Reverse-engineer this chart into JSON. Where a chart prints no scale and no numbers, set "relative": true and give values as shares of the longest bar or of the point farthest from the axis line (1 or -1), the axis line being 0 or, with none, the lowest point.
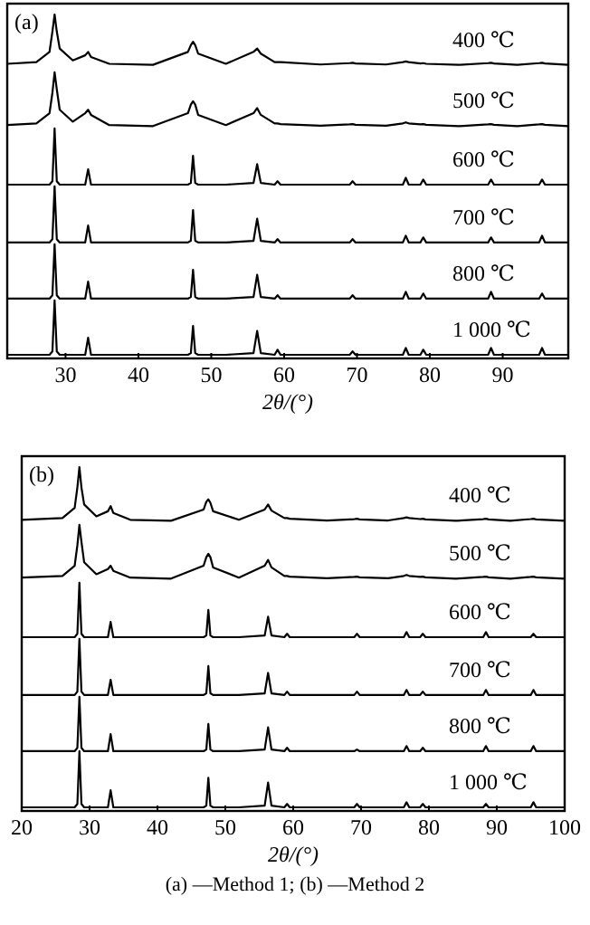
{
  "chart_data": [
    {
      "type": "line",
      "relative": true,
      "xlabel": "2θ/(°)",
      "annotations": [
        "(a)"
      ],
      "grid": false,
      "marker": "none",
      "line_style": "solid",
      "xlim": [
        22,
        99
      ],
      "xticks": [
        30,
        40,
        50,
        60,
        70,
        80,
        90
      ],
      "x": [
        22,
        26,
        27.8,
        28.2,
        28.5,
        28.8,
        29.2,
        31,
        32.7,
        33.1,
        33.5,
        36,
        42,
        46.8,
        47.2,
        47.5,
        47.8,
        48.2,
        52,
        55.8,
        56.3,
        56.8,
        58.7,
        59.1,
        59.5,
        65,
        69,
        69.4,
        69.8,
        74,
        76.3,
        76.7,
        77.1,
        78.7,
        79.1,
        79.5,
        84,
        88,
        88.4,
        88.8,
        92,
        95,
        95.4,
        95.8,
        99
      ],
      "series": [
        {
          "name": "400 ℃",
          "color": "#000000",
          "values": [
            0.855,
            0.86,
            0.89,
            0.95,
            1.0,
            0.95,
            0.9,
            0.865,
            0.88,
            0.89,
            0.875,
            0.855,
            0.852,
            0.89,
            0.91,
            0.92,
            0.91,
            0.885,
            0.855,
            0.89,
            0.9,
            0.885,
            0.86,
            0.86,
            0.86,
            0.853,
            0.857,
            0.858,
            0.856,
            0.853,
            0.86,
            0.862,
            0.86,
            0.856,
            0.857,
            0.855,
            0.852,
            0.857,
            0.858,
            0.856,
            0.852,
            0.857,
            0.858,
            0.856,
            0.852
          ]
        },
        {
          "name": "500 ℃",
          "color": "#000000",
          "values": [
            0.675,
            0.68,
            0.71,
            0.77,
            0.83,
            0.78,
            0.72,
            0.685,
            0.71,
            0.72,
            0.705,
            0.675,
            0.672,
            0.71,
            0.735,
            0.745,
            0.735,
            0.705,
            0.675,
            0.71,
            0.725,
            0.705,
            0.68,
            0.68,
            0.678,
            0.673,
            0.677,
            0.678,
            0.676,
            0.673,
            0.68,
            0.683,
            0.68,
            0.677,
            0.678,
            0.676,
            0.672,
            0.677,
            0.678,
            0.676,
            0.672,
            0.677,
            0.678,
            0.676,
            0.672
          ]
        },
        {
          "name": "600 ℃",
          "color": "#000000",
          "values": [
            0.5,
            0.5,
            0.5,
            0.51,
            0.665,
            0.51,
            0.5,
            0.5,
            0.5,
            0.545,
            0.5,
            0.5,
            0.5,
            0.5,
            0.505,
            0.585,
            0.505,
            0.5,
            0.5,
            0.505,
            0.56,
            0.505,
            0.5,
            0.51,
            0.5,
            0.5,
            0.5,
            0.51,
            0.5,
            0.5,
            0.5,
            0.52,
            0.5,
            0.5,
            0.515,
            0.5,
            0.5,
            0.5,
            0.515,
            0.5,
            0.5,
            0.5,
            0.515,
            0.5,
            0.5
          ]
        },
        {
          "name": "700 ℃",
          "color": "#000000",
          "values": [
            0.33,
            0.33,
            0.33,
            0.34,
            0.495,
            0.34,
            0.33,
            0.33,
            0.33,
            0.38,
            0.33,
            0.33,
            0.33,
            0.33,
            0.335,
            0.425,
            0.335,
            0.33,
            0.33,
            0.335,
            0.4,
            0.335,
            0.33,
            0.34,
            0.33,
            0.33,
            0.33,
            0.34,
            0.33,
            0.33,
            0.33,
            0.35,
            0.33,
            0.33,
            0.345,
            0.33,
            0.33,
            0.33,
            0.345,
            0.33,
            0.33,
            0.33,
            0.35,
            0.33,
            0.33
          ]
        },
        {
          "name": "800 ℃",
          "color": "#000000",
          "values": [
            0.165,
            0.165,
            0.165,
            0.175,
            0.325,
            0.175,
            0.165,
            0.165,
            0.165,
            0.215,
            0.165,
            0.165,
            0.165,
            0.165,
            0.17,
            0.25,
            0.17,
            0.165,
            0.165,
            0.17,
            0.235,
            0.17,
            0.165,
            0.175,
            0.165,
            0.165,
            0.165,
            0.175,
            0.165,
            0.165,
            0.165,
            0.185,
            0.165,
            0.165,
            0.18,
            0.165,
            0.165,
            0.165,
            0.185,
            0.165,
            0.165,
            0.165,
            0.18,
            0.165,
            0.165
          ]
        },
        {
          "name": "1 000 ℃",
          "color": "#000000",
          "values": [
            0,
            0,
            0,
            0.01,
            0.16,
            0.01,
            0,
            0,
            0,
            0.05,
            0,
            0,
            0,
            0,
            0.005,
            0.085,
            0.005,
            0,
            0,
            0.005,
            0.07,
            0.005,
            0,
            0.015,
            0,
            0,
            0,
            0.01,
            0,
            0,
            0,
            0.02,
            0,
            0,
            0.015,
            0,
            0,
            0,
            0.02,
            0,
            0,
            0,
            0.02,
            0,
            0
          ]
        }
      ]
    },
    {
      "type": "line",
      "relative": true,
      "xlabel": "2θ/(°)",
      "annotations": [
        "(b)",
        "(a) —Method 1; (b) —Method 2"
      ],
      "grid": false,
      "marker": "none",
      "line_style": "solid",
      "xlim": [
        20,
        100
      ],
      "xticks": [
        20,
        30,
        40,
        50,
        60,
        70,
        80,
        90,
        100
      ],
      "x": [
        20,
        26,
        27.8,
        28.2,
        28.5,
        28.8,
        29.2,
        31,
        32.7,
        33.1,
        33.5,
        36,
        42,
        46.8,
        47.2,
        47.5,
        47.8,
        48.2,
        52,
        55.8,
        56.3,
        56.8,
        58.7,
        59.1,
        59.5,
        65,
        69,
        69.4,
        69.8,
        74,
        76.3,
        76.7,
        77.1,
        78.7,
        79.1,
        79.5,
        84,
        88,
        88.4,
        88.8,
        92,
        95,
        95.4,
        95.8,
        100
      ],
      "series": [
        {
          "name": "400 ℃",
          "color": "#000000",
          "values": [
            0.845,
            0.85,
            0.88,
            0.94,
            1.0,
            0.94,
            0.89,
            0.855,
            0.87,
            0.885,
            0.865,
            0.845,
            0.842,
            0.875,
            0.898,
            0.905,
            0.895,
            0.87,
            0.845,
            0.875,
            0.89,
            0.872,
            0.85,
            0.85,
            0.848,
            0.843,
            0.847,
            0.848,
            0.846,
            0.843,
            0.85,
            0.852,
            0.85,
            0.847,
            0.848,
            0.846,
            0.842,
            0.847,
            0.848,
            0.846,
            0.842,
            0.847,
            0.848,
            0.846,
            0.842
          ]
        },
        {
          "name": "500 ℃",
          "color": "#000000",
          "values": [
            0.675,
            0.68,
            0.71,
            0.77,
            0.83,
            0.78,
            0.72,
            0.685,
            0.7,
            0.71,
            0.695,
            0.675,
            0.672,
            0.71,
            0.735,
            0.745,
            0.735,
            0.705,
            0.675,
            0.71,
            0.727,
            0.705,
            0.68,
            0.68,
            0.678,
            0.673,
            0.677,
            0.678,
            0.676,
            0.673,
            0.68,
            0.683,
            0.68,
            0.677,
            0.678,
            0.676,
            0.672,
            0.677,
            0.678,
            0.676,
            0.672,
            0.677,
            0.678,
            0.676,
            0.672
          ]
        },
        {
          "name": "600 ℃",
          "color": "#000000",
          "values": [
            0.5,
            0.5,
            0.5,
            0.51,
            0.66,
            0.51,
            0.5,
            0.5,
            0.5,
            0.545,
            0.5,
            0.5,
            0.5,
            0.5,
            0.505,
            0.58,
            0.505,
            0.5,
            0.5,
            0.505,
            0.56,
            0.505,
            0.5,
            0.51,
            0.5,
            0.5,
            0.5,
            0.51,
            0.5,
            0.5,
            0.5,
            0.515,
            0.5,
            0.5,
            0.51,
            0.5,
            0.5,
            0.5,
            0.515,
            0.5,
            0.5,
            0.5,
            0.51,
            0.5,
            0.5
          ]
        },
        {
          "name": "700 ℃",
          "color": "#000000",
          "values": [
            0.33,
            0.33,
            0.33,
            0.34,
            0.495,
            0.34,
            0.33,
            0.33,
            0.33,
            0.375,
            0.33,
            0.33,
            0.33,
            0.33,
            0.335,
            0.415,
            0.335,
            0.33,
            0.33,
            0.335,
            0.395,
            0.335,
            0.33,
            0.34,
            0.33,
            0.33,
            0.33,
            0.34,
            0.33,
            0.33,
            0.33,
            0.345,
            0.33,
            0.33,
            0.34,
            0.33,
            0.33,
            0.33,
            0.345,
            0.33,
            0.33,
            0.33,
            0.345,
            0.33,
            0.33
          ]
        },
        {
          "name": "800 ℃",
          "color": "#000000",
          "values": [
            0.165,
            0.165,
            0.165,
            0.175,
            0.325,
            0.175,
            0.165,
            0.165,
            0.165,
            0.215,
            0.165,
            0.165,
            0.165,
            0.165,
            0.17,
            0.245,
            0.17,
            0.165,
            0.165,
            0.17,
            0.235,
            0.17,
            0.165,
            0.175,
            0.165,
            0.165,
            0.165,
            0.17,
            0.165,
            0.165,
            0.165,
            0.18,
            0.165,
            0.165,
            0.175,
            0.165,
            0.165,
            0.165,
            0.18,
            0.165,
            0.165,
            0.165,
            0.18,
            0.165,
            0.165
          ]
        },
        {
          "name": "1 000 ℃",
          "color": "#000000",
          "values": [
            0,
            0,
            0,
            0.01,
            0.165,
            0.01,
            0,
            0,
            0,
            0.05,
            0,
            0,
            0,
            0,
            0.005,
            0.087,
            0.005,
            0,
            0,
            0.005,
            0.073,
            0.005,
            0,
            0.01,
            0,
            0,
            0,
            0.01,
            0,
            0,
            0,
            0.015,
            0,
            0,
            0.01,
            0,
            0,
            0,
            0.01,
            0,
            0,
            0,
            0.015,
            0,
            0
          ]
        }
      ]
    }
  ]
}
